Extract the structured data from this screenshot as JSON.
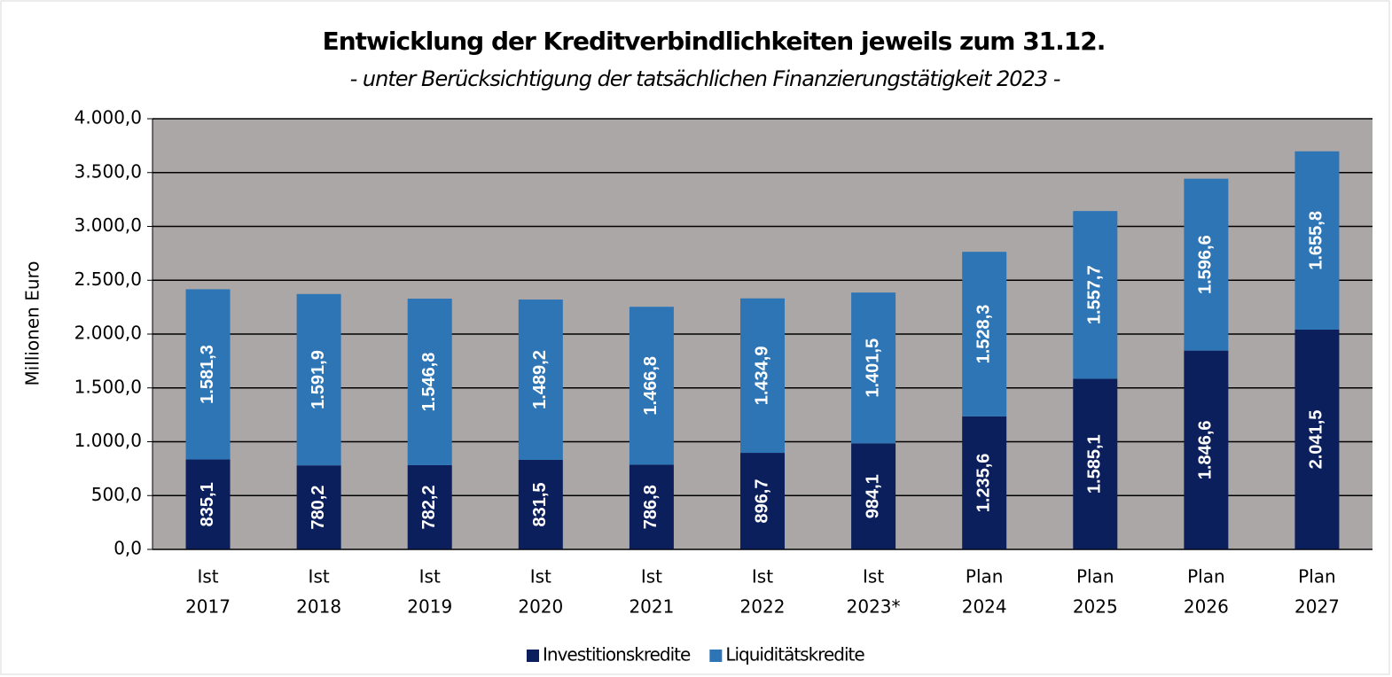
{
  "chart_data": {
    "type": "stacked_bar",
    "title": "Entwicklung der Kreditverbindlichkeiten jeweils zum  31.12.",
    "subtitle": "- unter Berücksichtigung der tatsächlichen Finanzierungstätigkeit 2023 -",
    "y_label": "Millionen  Euro",
    "categories": [
      [
        "Ist",
        "2017"
      ],
      [
        "Ist",
        "2018"
      ],
      [
        "Ist",
        "2019"
      ],
      [
        "Ist",
        "2020"
      ],
      [
        "Ist",
        "2021"
      ],
      [
        "Ist",
        "2022"
      ],
      [
        "Ist",
        "2023*"
      ],
      [
        "Plan",
        "2024"
      ],
      [
        "Plan",
        "2025"
      ],
      [
        "Plan",
        "2026"
      ],
      [
        "Plan",
        "2027"
      ]
    ],
    "series": [
      {
        "name": "Investitionskredite",
        "color": "#0b1f5c",
        "values": [
          835.1,
          780.2,
          782.2,
          831.5,
          786.8,
          896.7,
          984.1,
          1235.6,
          1585.1,
          1846.6,
          2041.5
        ],
        "value_labels": [
          "835,1",
          "780,2",
          "782,2",
          "831,5",
          "786,8",
          "896,7",
          "984,1",
          "1.235,6",
          "1.585,1",
          "1.846,6",
          "2.041,5"
        ]
      },
      {
        "name": "Liquiditätskredite",
        "color": "#2e75b6",
        "values": [
          1581.3,
          1591.9,
          1546.8,
          1489.2,
          1466.8,
          1434.9,
          1401.5,
          1528.3,
          1557.7,
          1596.6,
          1655.8
        ],
        "value_labels": [
          "1.581,3",
          "1.591,9",
          "1.546,8",
          "1.489,2",
          "1.466,8",
          "1.434,9",
          "1.401,5",
          "1.528,3",
          "1.557,7",
          "1.596,6",
          "1.655,8"
        ]
      }
    ],
    "ylim": [
      0,
      4000
    ],
    "yticks": [
      {
        "value": 0,
        "label": "0,0"
      },
      {
        "value": 500,
        "label": "500,0"
      },
      {
        "value": 1000,
        "label": "1.000,0"
      },
      {
        "value": 1500,
        "label": "1.500,0"
      },
      {
        "value": 2000,
        "label": "2.000,0"
      },
      {
        "value": 2500,
        "label": "2.500,0"
      },
      {
        "value": 3000,
        "label": "3.000,0"
      },
      {
        "value": 3500,
        "label": "3.500,0"
      },
      {
        "value": 4000,
        "label": "4.000,0"
      }
    ],
    "grid": true,
    "plot_background": "#aba7a6",
    "legend": "bottom"
  }
}
